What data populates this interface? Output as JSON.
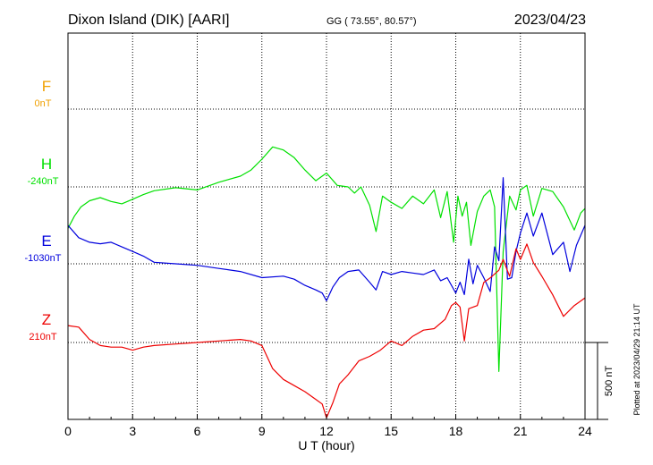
{
  "header": {
    "station": "Dixon Island (DIK)  [AARI]",
    "coords": "GG ( 73.55°,  80.57°)",
    "date": "2023/04/23"
  },
  "side_note": "Plotted at 2023/04/29 21:14 UT",
  "chart_data": {
    "type": "line",
    "xlabel": "U T (hour)",
    "xlim": [
      0,
      24
    ],
    "xticks": [
      "0",
      "3",
      "6",
      "9",
      "12",
      "15",
      "18",
      "21",
      "24"
    ],
    "scale_bar": {
      "label": "500 nT",
      "value_nT": 500
    },
    "grid": true,
    "series": [
      {
        "name": "F",
        "baseline_label": "0nT",
        "color": "#f0a000",
        "points": []
      },
      {
        "name": "H",
        "baseline_label": "-240nT",
        "color": "#00e000",
        "points": [
          [
            0,
            -270
          ],
          [
            0.3,
            -190
          ],
          [
            0.6,
            -130
          ],
          [
            1.0,
            -90
          ],
          [
            1.5,
            -70
          ],
          [
            2.0,
            -95
          ],
          [
            2.5,
            -110
          ],
          [
            3.0,
            -80
          ],
          [
            3.5,
            -50
          ],
          [
            4.0,
            -25
          ],
          [
            5.0,
            -5
          ],
          [
            6.0,
            -20
          ],
          [
            7.0,
            30
          ],
          [
            8.0,
            70
          ],
          [
            8.5,
            110
          ],
          [
            9.0,
            180
          ],
          [
            9.5,
            260
          ],
          [
            10.0,
            240
          ],
          [
            10.5,
            190
          ],
          [
            11.0,
            110
          ],
          [
            11.5,
            40
          ],
          [
            12.0,
            90
          ],
          [
            12.5,
            10
          ],
          [
            13.0,
            0
          ],
          [
            13.3,
            -40
          ],
          [
            13.6,
            0
          ],
          [
            14.0,
            -120
          ],
          [
            14.3,
            -290
          ],
          [
            14.6,
            -60
          ],
          [
            15.0,
            -100
          ],
          [
            15.5,
            -140
          ],
          [
            16.0,
            -60
          ],
          [
            16.5,
            -110
          ],
          [
            17.0,
            -20
          ],
          [
            17.3,
            -200
          ],
          [
            17.6,
            -30
          ],
          [
            17.9,
            -360
          ],
          [
            18.1,
            -60
          ],
          [
            18.3,
            -190
          ],
          [
            18.5,
            -100
          ],
          [
            18.7,
            -380
          ],
          [
            19.0,
            -160
          ],
          [
            19.3,
            -60
          ],
          [
            19.6,
            -20
          ],
          [
            19.8,
            -130
          ],
          [
            20.0,
            -1200
          ],
          [
            20.2,
            -420
          ],
          [
            20.5,
            -60
          ],
          [
            20.8,
            -150
          ],
          [
            21.0,
            -20
          ],
          [
            21.3,
            10
          ],
          [
            21.6,
            -190
          ],
          [
            22.0,
            -10
          ],
          [
            22.5,
            -30
          ],
          [
            23.0,
            -130
          ],
          [
            23.5,
            -280
          ],
          [
            23.8,
            -170
          ],
          [
            24.0,
            -140
          ]
        ]
      },
      {
        "name": "E",
        "baseline_label": "-1030nT",
        "color": "#0000dd",
        "points": [
          [
            0,
            250
          ],
          [
            0.5,
            170
          ],
          [
            1.0,
            140
          ],
          [
            1.5,
            130
          ],
          [
            2.0,
            140
          ],
          [
            2.5,
            110
          ],
          [
            3.0,
            80
          ],
          [
            3.5,
            50
          ],
          [
            4.0,
            10
          ],
          [
            5.0,
            0
          ],
          [
            6.0,
            -10
          ],
          [
            7.0,
            -30
          ],
          [
            8.0,
            -50
          ],
          [
            9.0,
            -90
          ],
          [
            10.0,
            -80
          ],
          [
            10.5,
            -100
          ],
          [
            11.0,
            -140
          ],
          [
            11.5,
            -170
          ],
          [
            11.8,
            -190
          ],
          [
            12.0,
            -240
          ],
          [
            12.3,
            -150
          ],
          [
            12.6,
            -90
          ],
          [
            13.0,
            -50
          ],
          [
            13.5,
            -40
          ],
          [
            14.0,
            -120
          ],
          [
            14.3,
            -170
          ],
          [
            14.6,
            -50
          ],
          [
            15.0,
            -70
          ],
          [
            15.5,
            -50
          ],
          [
            16.0,
            -60
          ],
          [
            16.5,
            -70
          ],
          [
            17.0,
            -40
          ],
          [
            17.3,
            -110
          ],
          [
            17.6,
            -90
          ],
          [
            18.0,
            -190
          ],
          [
            18.2,
            -120
          ],
          [
            18.4,
            -200
          ],
          [
            18.6,
            30
          ],
          [
            18.8,
            -130
          ],
          [
            19.0,
            -10
          ],
          [
            19.3,
            -90
          ],
          [
            19.6,
            -180
          ],
          [
            19.8,
            110
          ],
          [
            20.0,
            20
          ],
          [
            20.2,
            560
          ],
          [
            20.4,
            -100
          ],
          [
            20.6,
            -90
          ],
          [
            20.8,
            80
          ],
          [
            21.0,
            200
          ],
          [
            21.3,
            330
          ],
          [
            21.6,
            180
          ],
          [
            22.0,
            330
          ],
          [
            22.5,
            60
          ],
          [
            23.0,
            140
          ],
          [
            23.3,
            -50
          ],
          [
            23.6,
            120
          ],
          [
            24.0,
            250
          ]
        ]
      },
      {
        "name": "Z",
        "baseline_label": "210nT",
        "color": "#ee0000",
        "points": [
          [
            0,
            110
          ],
          [
            0.5,
            100
          ],
          [
            1.0,
            20
          ],
          [
            1.5,
            -20
          ],
          [
            2.0,
            -30
          ],
          [
            2.5,
            -30
          ],
          [
            3.0,
            -50
          ],
          [
            3.5,
            -30
          ],
          [
            4.0,
            -20
          ],
          [
            5.0,
            -10
          ],
          [
            6.0,
            0
          ],
          [
            7.0,
            10
          ],
          [
            8.0,
            20
          ],
          [
            8.5,
            10
          ],
          [
            9.0,
            -20
          ],
          [
            9.5,
            -170
          ],
          [
            10.0,
            -240
          ],
          [
            10.5,
            -280
          ],
          [
            11.0,
            -320
          ],
          [
            11.5,
            -370
          ],
          [
            11.8,
            -400
          ],
          [
            12.0,
            -490
          ],
          [
            12.3,
            -390
          ],
          [
            12.6,
            -270
          ],
          [
            13.0,
            -210
          ],
          [
            13.5,
            -120
          ],
          [
            14.0,
            -90
          ],
          [
            14.5,
            -50
          ],
          [
            15.0,
            10
          ],
          [
            15.5,
            -20
          ],
          [
            16.0,
            40
          ],
          [
            16.5,
            80
          ],
          [
            17.0,
            90
          ],
          [
            17.5,
            150
          ],
          [
            17.8,
            240
          ],
          [
            18.0,
            260
          ],
          [
            18.2,
            230
          ],
          [
            18.4,
            10
          ],
          [
            18.6,
            220
          ],
          [
            19.0,
            240
          ],
          [
            19.3,
            390
          ],
          [
            19.6,
            420
          ],
          [
            20.0,
            470
          ],
          [
            20.2,
            540
          ],
          [
            20.5,
            430
          ],
          [
            20.8,
            610
          ],
          [
            21.0,
            540
          ],
          [
            21.3,
            640
          ],
          [
            21.6,
            520
          ],
          [
            22.0,
            430
          ],
          [
            22.5,
            310
          ],
          [
            23.0,
            170
          ],
          [
            23.5,
            240
          ],
          [
            24.0,
            290
          ]
        ]
      }
    ]
  }
}
